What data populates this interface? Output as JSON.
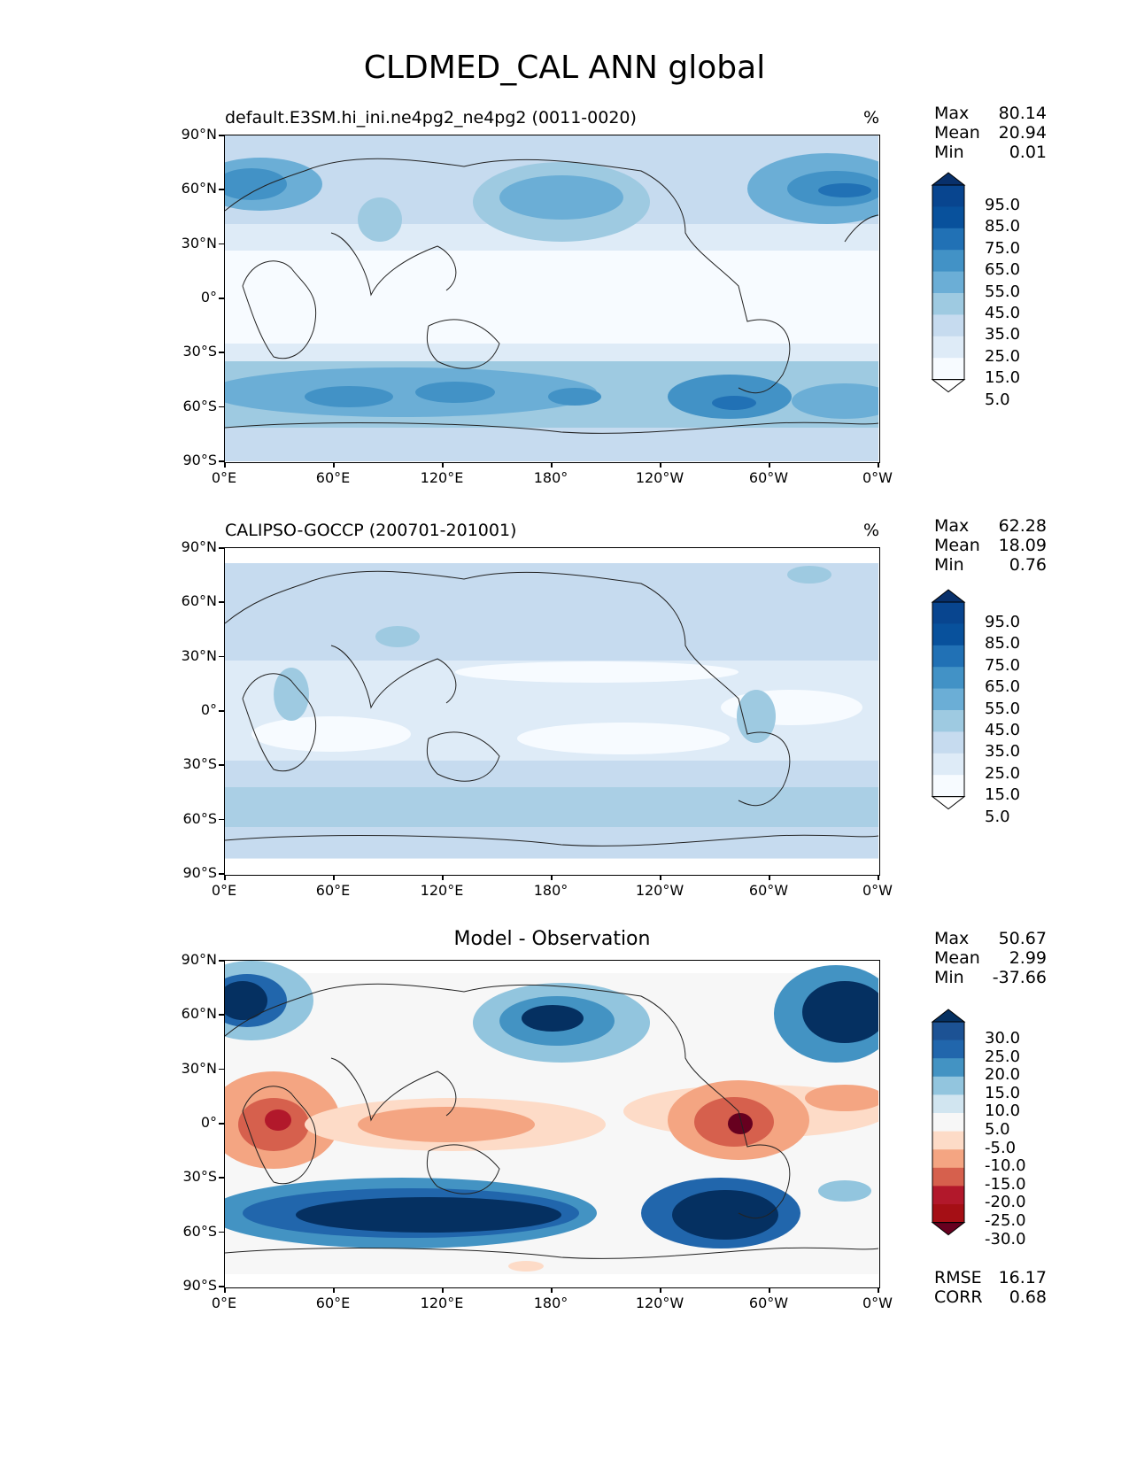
{
  "title": "CLDMED_CAL ANN global",
  "panels": [
    {
      "id": "model",
      "title": "default.E3SM.hi_ini.ne4pg2_ne4pg2 (0011-0020)",
      "units": "%",
      "stats": {
        "max_label": "Max",
        "max": "80.14",
        "mean_label": "Mean",
        "mean": "20.94",
        "min_label": "Min",
        "min": "0.01"
      },
      "colorbar_labels": [
        "95.0",
        "85.0",
        "75.0",
        "65.0",
        "55.0",
        "45.0",
        "35.0",
        "25.0",
        "15.0",
        "5.0"
      ],
      "colors": [
        "#f7fbff",
        "#deebf7",
        "#c6dbef",
        "#9ecae1",
        "#6baed6",
        "#4292c6",
        "#2171b5",
        "#08519c",
        "#08306b"
      ]
    },
    {
      "id": "obs",
      "title": "CALIPSO-GOCCP (200701-201001)",
      "units": "%",
      "stats": {
        "max_label": "Max",
        "max": "62.28",
        "mean_label": "Mean",
        "mean": "18.09",
        "min_label": "Min",
        "min": "0.76"
      },
      "colorbar_labels": [
        "95.0",
        "85.0",
        "75.0",
        "65.0",
        "55.0",
        "45.0",
        "35.0",
        "25.0",
        "15.0",
        "5.0"
      ]
    },
    {
      "id": "diff",
      "title": "Model - Observation",
      "units": "",
      "stats": {
        "max_label": "Max",
        "max": "50.67",
        "mean_label": "Mean",
        "mean": "2.99",
        "min_label": "Min",
        "min": "-37.66"
      },
      "colorbar_labels": [
        "30.0",
        "25.0",
        "20.0",
        "15.0",
        "10.0",
        "5.0",
        "-5.0",
        "-10.0",
        "-15.0",
        "-20.0",
        "-25.0",
        "-30.0"
      ],
      "metrics": {
        "rmse_label": "RMSE",
        "rmse": "16.17",
        "corr_label": "CORR",
        "corr": "0.68"
      }
    }
  ],
  "x_ticks": [
    "0°E",
    "60°E",
    "120°E",
    "180°",
    "120°W",
    "60°W",
    "0°W"
  ],
  "y_ticks": [
    "90°N",
    "60°N",
    "30°N",
    "0°",
    "30°S",
    "60°S",
    "90°S"
  ],
  "colormaps": {
    "sequential": [
      "#f7fbff",
      "#deebf7",
      "#c6dbef",
      "#9ecae1",
      "#6baed6",
      "#4292c6",
      "#2171b5",
      "#08519c",
      "#08306b"
    ],
    "diverging_blue_to_red": [
      "#053061",
      "#2166ac",
      "#4393c3",
      "#92c5de",
      "#d1e5f0",
      "#f7f7f7",
      "#fddbc7",
      "#f4a582",
      "#d6604d",
      "#b2182b",
      "#67001f"
    ]
  }
}
